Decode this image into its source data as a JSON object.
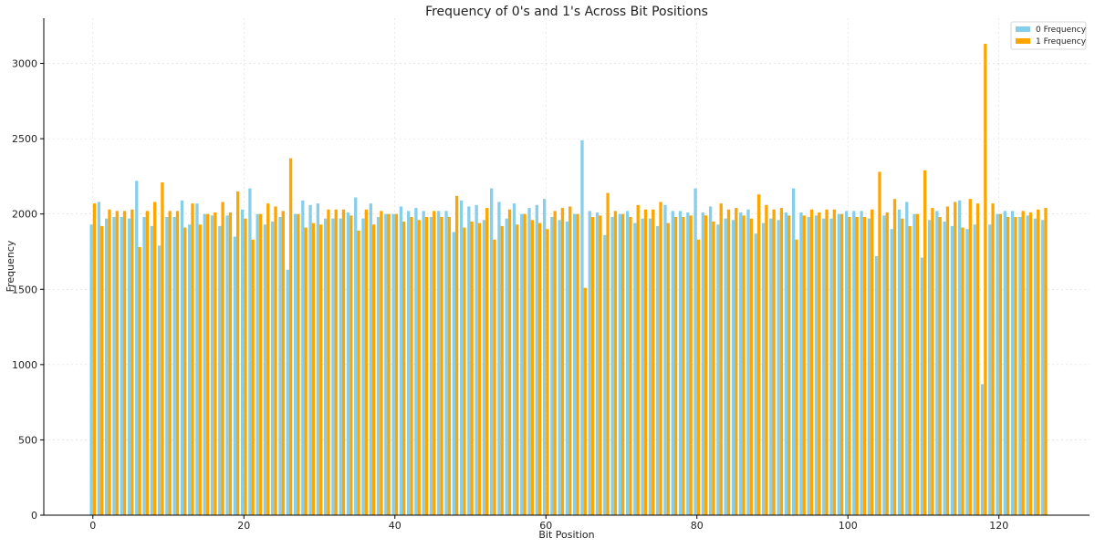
{
  "chart_data": {
    "type": "bar",
    "title": "Frequency of 0's and 1's Across Bit Positions",
    "xlabel": "Bit Position",
    "ylabel": "Frequency",
    "xlim": [
      -6.5,
      132
    ],
    "ylim": [
      0,
      3300
    ],
    "x_ticks": [
      0,
      20,
      40,
      60,
      80,
      100,
      120
    ],
    "y_ticks": [
      0,
      500,
      1000,
      1500,
      2000,
      2500,
      3000
    ],
    "grid": true,
    "legend_position": "top-right",
    "x": [
      0,
      1,
      2,
      3,
      4,
      5,
      6,
      7,
      8,
      9,
      10,
      11,
      12,
      13,
      14,
      15,
      16,
      17,
      18,
      19,
      20,
      21,
      22,
      23,
      24,
      25,
      26,
      27,
      28,
      29,
      30,
      31,
      32,
      33,
      34,
      35,
      36,
      37,
      38,
      39,
      40,
      41,
      42,
      43,
      44,
      45,
      46,
      47,
      48,
      49,
      50,
      51,
      52,
      53,
      54,
      55,
      56,
      57,
      58,
      59,
      60,
      61,
      62,
      63,
      64,
      65,
      66,
      67,
      68,
      69,
      70,
      71,
      72,
      73,
      74,
      75,
      76,
      77,
      78,
      79,
      80,
      81,
      82,
      83,
      84,
      85,
      86,
      87,
      88,
      89,
      90,
      91,
      92,
      93,
      94,
      95,
      96,
      97,
      98,
      99,
      100,
      101,
      102,
      103,
      104,
      105,
      106,
      107,
      108,
      109,
      110,
      111,
      112,
      113,
      114,
      115,
      116,
      117,
      118,
      119,
      120,
      121,
      122,
      123,
      124,
      125,
      126
    ],
    "series": [
      {
        "name": "0 Frequency",
        "color": "#87ceeb",
        "values": [
          1930,
          2080,
          1970,
          1980,
          1980,
          1970,
          2220,
          1980,
          1920,
          1790,
          1980,
          1980,
          2090,
          1930,
          2070,
          2000,
          1990,
          1920,
          1990,
          1850,
          2030,
          2170,
          2000,
          1930,
          1950,
          1980,
          1630,
          2000,
          2090,
          2060,
          2070,
          1970,
          1970,
          1970,
          2010,
          2110,
          1970,
          2070,
          1980,
          2000,
          2000,
          2050,
          2020,
          2040,
          2020,
          1980,
          2020,
          2020,
          1880,
          2090,
          2050,
          2060,
          1960,
          2170,
          2080,
          1970,
          2070,
          2000,
          2040,
          2060,
          2100,
          1980,
          1960,
          1950,
          2000,
          2490,
          2020,
          2010,
          1860,
          1980,
          2000,
          2020,
          1940,
          1970,
          1970,
          1920,
          2060,
          2020,
          2020,
          2010,
          2170,
          2010,
          2050,
          1930,
          1970,
          1960,
          2010,
          2030,
          1870,
          1940,
          1970,
          1960,
          2010,
          2170,
          2010,
          1980,
          1990,
          1970,
          1970,
          2000,
          2020,
          2020,
          2020,
          1970,
          1720,
          1990,
          1900,
          2030,
          2080,
          2000,
          1710,
          1960,
          2020,
          1950,
          1920,
          2090,
          1900,
          1930,
          870,
          1930,
          2000,
          2020,
          2020,
          1980,
          1990,
          1970,
          1960
        ]
      },
      {
        "name": "1 Frequency",
        "color": "#ffa500",
        "values": [
          2070,
          1920,
          2030,
          2020,
          2020,
          2030,
          1780,
          2020,
          2080,
          2210,
          2020,
          2020,
          1910,
          2070,
          1930,
          2000,
          2010,
          2080,
          2010,
          2150,
          1970,
          1830,
          2000,
          2070,
          2050,
          2020,
          2370,
          2000,
          1910,
          1940,
          1930,
          2030,
          2030,
          2030,
          1990,
          1890,
          2030,
          1930,
          2020,
          2000,
          2000,
          1950,
          1980,
          1960,
          1980,
          2020,
          1980,
          1980,
          2120,
          1910,
          1950,
          1940,
          2040,
          1830,
          1920,
          2030,
          1930,
          2000,
          1960,
          1940,
          1900,
          2020,
          2040,
          2050,
          2000,
          1510,
          1980,
          1990,
          2140,
          2020,
          2000,
          1980,
          2060,
          2030,
          2030,
          2080,
          1940,
          1980,
          1980,
          1990,
          1830,
          1990,
          1950,
          2070,
          2030,
          2040,
          1990,
          1970,
          2130,
          2060,
          2030,
          2040,
          1990,
          1830,
          1990,
          2030,
          2010,
          2030,
          2030,
          2000,
          1980,
          1980,
          1980,
          2030,
          2280,
          2010,
          2100,
          1970,
          1920,
          2000,
          2290,
          2040,
          1980,
          2050,
          2080,
          1910,
          2100,
          2070,
          3130,
          2070,
          2000,
          1980,
          1980,
          2020,
          2010,
          2030,
          2040
        ]
      }
    ]
  }
}
